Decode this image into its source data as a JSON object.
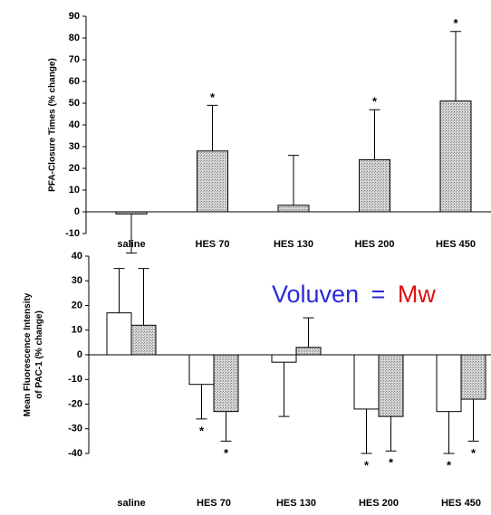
{
  "chart_data": [
    {
      "type": "bar",
      "ylabel": "PFA-Closure Times (% change)",
      "categories": [
        "saline",
        "HES 70",
        "HES 130",
        "HES 200",
        "HES 450"
      ],
      "series": [
        {
          "color": "#bbbbbb",
          "values": [
            -1,
            28,
            3,
            24,
            51
          ],
          "errors": [
            18,
            21,
            23,
            23,
            32
          ],
          "markers": [
            null,
            "*",
            null,
            "*",
            "*"
          ]
        }
      ],
      "ylim": [
        -10,
        90
      ],
      "yticks": [
        -10,
        0,
        10,
        20,
        30,
        40,
        50,
        60,
        70,
        80,
        90
      ]
    },
    {
      "type": "bar",
      "ylabel": [
        "Mean Fluorescence Intensity",
        "of PAC-1 (% change)"
      ],
      "categories": [
        "saline",
        "HES 70",
        "HES 130",
        "HES 200",
        "HES 450"
      ],
      "series": [
        {
          "color": "#ffffff",
          "values": [
            17,
            -12,
            -3,
            -22,
            -23
          ],
          "errors": [
            18,
            14,
            22,
            18,
            17
          ],
          "markers": [
            null,
            "*",
            null,
            "*",
            "*"
          ]
        },
        {
          "color": "#bbbbbb",
          "values": [
            12,
            -23,
            3,
            -25,
            -18
          ],
          "errors": [
            23,
            12,
            12,
            14,
            17
          ],
          "markers": [
            null,
            "*",
            null,
            "*",
            "*"
          ]
        }
      ],
      "ylim": [
        -40,
        40
      ],
      "yticks": [
        -40,
        -30,
        -20,
        -10,
        0,
        10,
        20,
        30,
        40
      ]
    }
  ],
  "annotations": [
    {
      "text": "Voluven",
      "color": "#2a2ad8"
    },
    {
      "text": "=",
      "color": "#2a2ad8"
    },
    {
      "text": "Mw",
      "color": "#e01010"
    }
  ]
}
